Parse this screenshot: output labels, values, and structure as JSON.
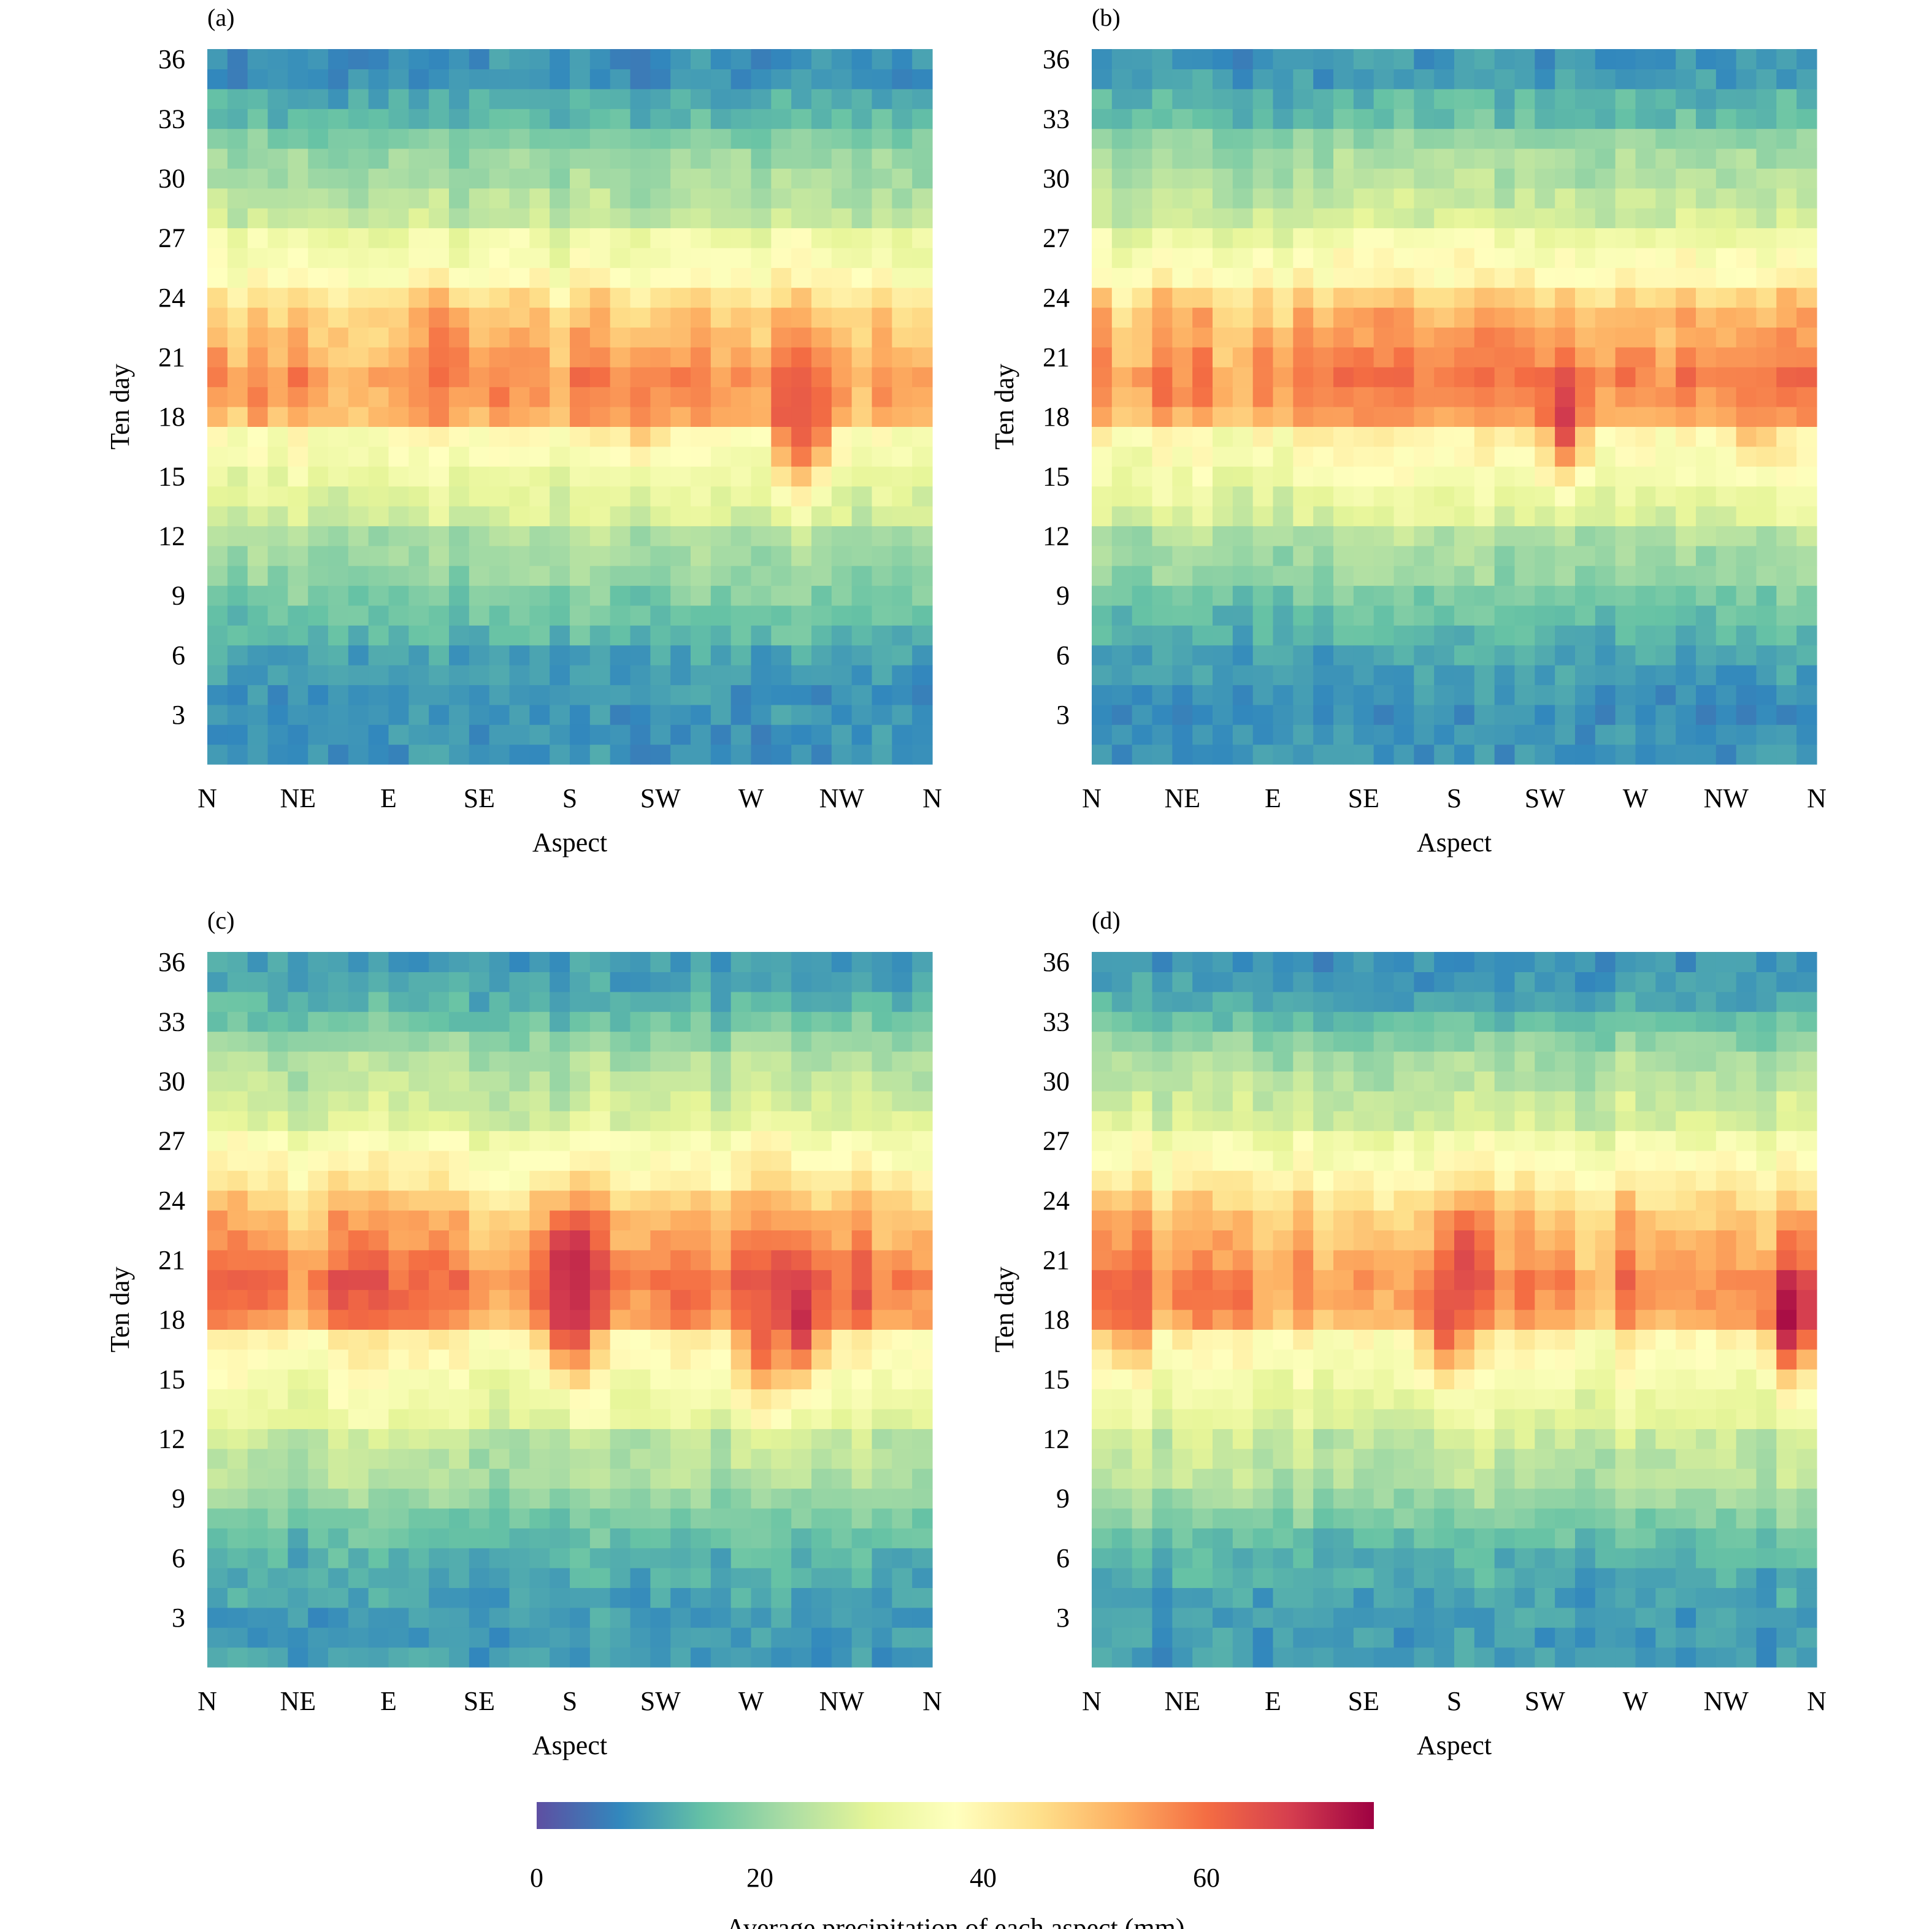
{
  "chart_data": [
    {
      "type": "heatmap",
      "panel_label": "(a)",
      "xlabel": "Aspect",
      "ylabel": "Ten day",
      "xtick_labels": [
        "N",
        "NE",
        "E",
        "SE",
        "S",
        "SW",
        "W",
        "NW",
        "N"
      ],
      "ytick_labels": [
        "3",
        "6",
        "9",
        "12",
        "15",
        "18",
        "21",
        "24",
        "27",
        "30",
        "33",
        "36"
      ],
      "x_range": [
        0,
        360
      ],
      "y_range": [
        1,
        36
      ],
      "n_aspect_bins": 36,
      "row_means": [
        9,
        9,
        9,
        9,
        10,
        11,
        14,
        16,
        18,
        20,
        21,
        23,
        28,
        30,
        32,
        35,
        37,
        51,
        54,
        55,
        52,
        50,
        48,
        44,
        38,
        35,
        33,
        26,
        24,
        22,
        21,
        18,
        14,
        12,
        9,
        9
      ],
      "hotspots": [
        {
          "aspect": 120,
          "ten_day": 21,
          "value": 60
        },
        {
          "aspect": 215,
          "ten_day": 19,
          "value": 58
        },
        {
          "aspect": 292,
          "ten_day": 18,
          "value": 66
        },
        {
          "aspect": 300,
          "ten_day": 18,
          "value": 62
        }
      ]
    },
    {
      "type": "heatmap",
      "panel_label": "(b)",
      "xlabel": "Aspect",
      "ylabel": "Ten day",
      "xtick_labels": [
        "N",
        "NE",
        "E",
        "SE",
        "S",
        "SW",
        "W",
        "NW",
        "N"
      ],
      "ytick_labels": [
        "3",
        "6",
        "9",
        "12",
        "15",
        "18",
        "21",
        "24",
        "27",
        "30",
        "33",
        "36"
      ],
      "x_range": [
        0,
        360
      ],
      "y_range": [
        1,
        36
      ],
      "n_aspect_bins": 36,
      "row_means": [
        9,
        9,
        8,
        9,
        10,
        11,
        13,
        15,
        17,
        20,
        21,
        23,
        29,
        31,
        34,
        36,
        38,
        52,
        55,
        57,
        54,
        52,
        50,
        46,
        38,
        36,
        33,
        27,
        25,
        23,
        22,
        19,
        15,
        13,
        10,
        9
      ],
      "hotspots": [
        {
          "aspect": 110,
          "ten_day": 20,
          "value": 58
        },
        {
          "aspect": 235,
          "ten_day": 18,
          "value": 68
        },
        {
          "aspect": 205,
          "ten_day": 21,
          "value": 58
        },
        {
          "aspect": 330,
          "ten_day": 19,
          "value": 58
        }
      ]
    },
    {
      "type": "heatmap",
      "panel_label": "(c)",
      "xlabel": "Aspect",
      "ylabel": "Ten day",
      "xtick_labels": [
        "N",
        "NE",
        "E",
        "SE",
        "S",
        "SW",
        "W",
        "NW",
        "N"
      ],
      "ytick_labels": [
        "3",
        "6",
        "9",
        "12",
        "15",
        "18",
        "21",
        "24",
        "27",
        "30",
        "33",
        "36"
      ],
      "x_range": [
        0,
        360
      ],
      "y_range": [
        1,
        36
      ],
      "n_aspect_bins": 36,
      "row_means": [
        10,
        10,
        10,
        11,
        12,
        13,
        15,
        17,
        20,
        23,
        24,
        25,
        31,
        33,
        35,
        38,
        40,
        55,
        58,
        59,
        56,
        53,
        51,
        47,
        41,
        38,
        35,
        29,
        27,
        25,
        23,
        20,
        16,
        13,
        11,
        10
      ],
      "hotspots": [
        {
          "aspect": 180,
          "ten_day": 21,
          "value": 72
        },
        {
          "aspect": 180,
          "ten_day": 18,
          "value": 70
        },
        {
          "aspect": 295,
          "ten_day": 18,
          "value": 70
        },
        {
          "aspect": 275,
          "ten_day": 17,
          "value": 62
        }
      ]
    },
    {
      "type": "heatmap",
      "panel_label": "(d)",
      "xlabel": "Aspect",
      "ylabel": "Ten day",
      "xtick_labels": [
        "N",
        "NE",
        "E",
        "SE",
        "S",
        "SW",
        "W",
        "NW",
        "N"
      ],
      "ytick_labels": [
        "3",
        "6",
        "9",
        "12",
        "15",
        "18",
        "21",
        "24",
        "27",
        "30",
        "33",
        "36"
      ],
      "x_range": [
        0,
        360
      ],
      "y_range": [
        1,
        36
      ],
      "n_aspect_bins": 36,
      "row_means": [
        10,
        10,
        10,
        11,
        12,
        13,
        15,
        18,
        21,
        24,
        25,
        26,
        30,
        32,
        34,
        37,
        39,
        52,
        55,
        56,
        53,
        51,
        49,
        45,
        40,
        37,
        34,
        28,
        26,
        24,
        22,
        19,
        15,
        12,
        10,
        9
      ],
      "hotspots": [
        {
          "aspect": 185,
          "ten_day": 21,
          "value": 66
        },
        {
          "aspect": 175,
          "ten_day": 18,
          "value": 64
        },
        {
          "aspect": 347,
          "ten_day": 18,
          "value": 74
        },
        {
          "aspect": 20,
          "ten_day": 19,
          "value": 62
        }
      ]
    }
  ],
  "colorbar": {
    "title": "Average precipitation of each aspect (mm)",
    "tick_labels": [
      "0",
      "20",
      "40",
      "60"
    ],
    "tick_values": [
      0,
      20,
      40,
      60
    ],
    "range": [
      0,
      75
    ],
    "colormap": "Spectral_r",
    "colors": [
      "#5e4fa2",
      "#3288bd",
      "#66c2a5",
      "#abdda4",
      "#e6f598",
      "#ffffbf",
      "#fee08b",
      "#fdae61",
      "#f46d43",
      "#d53e4f",
      "#9e0142"
    ]
  }
}
